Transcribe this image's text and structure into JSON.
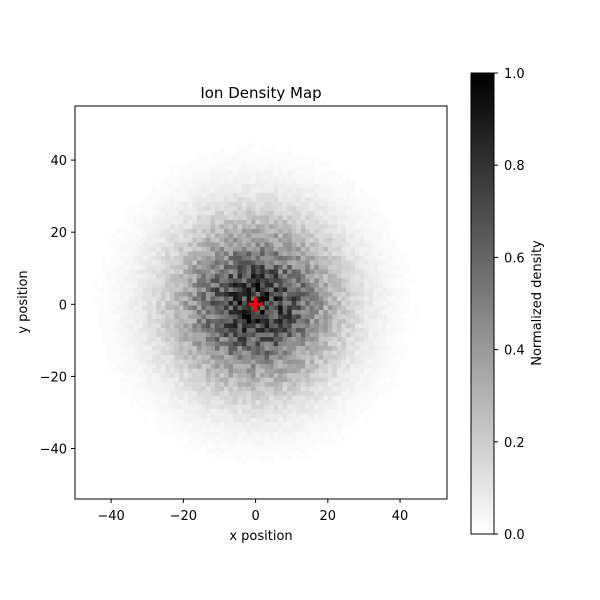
{
  "chart_data": {
    "type": "heatmap",
    "title": "Ion Density Map",
    "xlabel": "x position",
    "ylabel": "y position",
    "xlim": [
      -50,
      53
    ],
    "ylim": [
      -54,
      55
    ],
    "xticks": [
      -40,
      -20,
      0,
      20,
      40
    ],
    "yticks": [
      -40,
      -20,
      0,
      20,
      40
    ],
    "xtick_labels": [
      "−40",
      "−20",
      "0",
      "20",
      "40"
    ],
    "ytick_labels": [
      "−40",
      "−20",
      "0",
      "20",
      "40"
    ],
    "grid": false,
    "colormap": "Greys",
    "colorbar": {
      "label": "Normalized density",
      "range": [
        0,
        1
      ],
      "ticks": [
        0.0,
        0.2,
        0.4,
        0.6,
        0.8,
        1.0
      ],
      "tick_labels": [
        "0.0",
        "0.2",
        "0.4",
        "0.6",
        "0.8",
        "1.0"
      ]
    },
    "distribution": {
      "shape": "radially symmetric 2D Gaussian",
      "center": [
        0,
        0
      ],
      "sigma": 15,
      "peak_normalized_density": 1.0
    },
    "center_marker": {
      "x": 0,
      "y": 0,
      "symbol": "+",
      "color": "#ff0000"
    }
  }
}
